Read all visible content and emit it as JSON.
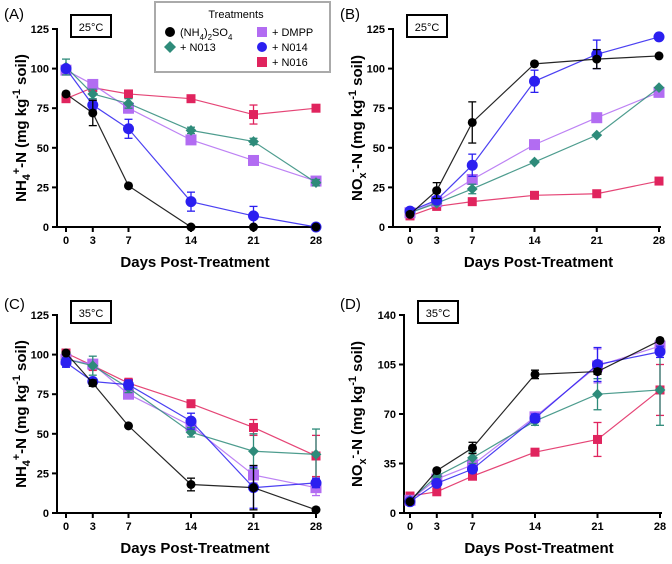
{
  "legend": {
    "title": "Treatments",
    "entries": [
      {
        "key": "AS",
        "label": [
          {
            "t": "(NH"
          },
          {
            "t": "4",
            "s": "sub"
          },
          {
            "t": ")"
          },
          {
            "t": "2",
            "s": "sub"
          },
          {
            "t": "SO"
          },
          {
            "t": "4",
            "s": "sub"
          }
        ]
      },
      {
        "key": "N013",
        "label": [
          {
            "t": "+ N013"
          }
        ]
      },
      {
        "key": "DMPP",
        "label": [
          {
            "t": "+ DMPP"
          }
        ]
      },
      {
        "key": "N014",
        "label": [
          {
            "t": "+ N014"
          }
        ]
      },
      {
        "key": "N016",
        "label": [
          {
            "t": "+ N016"
          }
        ]
      }
    ]
  },
  "styles": {
    "AS": {
      "color": "#000000",
      "marker": "circle"
    },
    "DMPP": {
      "color": "#b26cf2",
      "marker": "square"
    },
    "N013": {
      "color": "#2e8b7a",
      "marker": "diamond"
    },
    "N014": {
      "color": "#2b1ff0",
      "marker": "circle"
    },
    "N016": {
      "color": "#e0245e",
      "marker": "square"
    }
  },
  "chart_data": [
    {
      "type": "line",
      "panel": "(A)",
      "temperature": "25°C",
      "xlabel": "Days Post-Treatment",
      "ylabel": [
        {
          "t": "NH"
        },
        {
          "t": "4",
          "s": "sub"
        },
        {
          "t": "+",
          "s": "sup"
        },
        {
          "t": "-N (mg kg"
        },
        {
          "t": "-1",
          "s": "sup"
        },
        {
          "t": " soil)"
        }
      ],
      "x": [
        0,
        3,
        7,
        14,
        21,
        28
      ],
      "ylim": [
        0,
        125
      ],
      "yticks": [
        0,
        25,
        50,
        75,
        100,
        125
      ],
      "series": [
        {
          "key": "N016",
          "values": [
            81,
            88,
            84,
            81,
            71,
            75
          ],
          "err": [
            2,
            2,
            2,
            2,
            6,
            1
          ]
        },
        {
          "key": "DMPP",
          "values": [
            99,
            90,
            75,
            55,
            42,
            29
          ],
          "err": [
            2,
            2,
            3,
            2,
            2,
            2
          ]
        },
        {
          "key": "N013",
          "values": [
            101,
            84,
            78,
            61,
            54,
            28
          ],
          "err": [
            5,
            3,
            3,
            2,
            2,
            2
          ]
        },
        {
          "key": "N014",
          "values": [
            100,
            77,
            62,
            16,
            7,
            0
          ],
          "err": [
            2,
            3,
            6,
            6,
            6,
            1
          ]
        },
        {
          "key": "AS",
          "values": [
            84,
            72,
            26,
            0,
            0,
            0
          ],
          "err": [
            1,
            8,
            1,
            0,
            0,
            0
          ]
        }
      ]
    },
    {
      "type": "line",
      "panel": "(B)",
      "temperature": "25°C",
      "xlabel": "Days Post-Treatment",
      "ylabel": [
        {
          "t": "NO"
        },
        {
          "t": "x",
          "s": "sub"
        },
        {
          "t": "-",
          "s": "sup"
        },
        {
          "t": "-N (mg kg"
        },
        {
          "t": "-1",
          "s": "sup"
        },
        {
          "t": " soil)"
        }
      ],
      "x": [
        0,
        3,
        7,
        14,
        21,
        28
      ],
      "ylim": [
        0,
        125
      ],
      "yticks": [
        0,
        25,
        50,
        75,
        100,
        125
      ],
      "series": [
        {
          "key": "N016",
          "values": [
            7,
            13,
            16,
            20,
            21,
            29
          ],
          "err": [
            1,
            1,
            1,
            1,
            1,
            1
          ]
        },
        {
          "key": "DMPP",
          "values": [
            9,
            16,
            30,
            52,
            69,
            85
          ],
          "err": [
            1,
            2,
            3,
            2,
            2,
            2
          ]
        },
        {
          "key": "N013",
          "values": [
            9,
            15,
            24,
            41,
            58,
            88
          ],
          "err": [
            1,
            1,
            3,
            1,
            1,
            1
          ]
        },
        {
          "key": "N014",
          "values": [
            10,
            17,
            39,
            92,
            109,
            120
          ],
          "err": [
            1,
            2,
            7,
            7,
            9,
            1
          ]
        },
        {
          "key": "AS",
          "values": [
            8,
            23,
            66,
            103,
            106,
            108
          ],
          "err": [
            1,
            5,
            13,
            1,
            6,
            1
          ]
        }
      ]
    },
    {
      "type": "line",
      "panel": "(C)",
      "temperature": "35°C",
      "xlabel": "Days Post-Treatment",
      "ylabel": [
        {
          "t": "NH"
        },
        {
          "t": "4",
          "s": "sub"
        },
        {
          "t": "+",
          "s": "sup"
        },
        {
          "t": "-N (mg kg"
        },
        {
          "t": "-1",
          "s": "sup"
        },
        {
          "t": " soil)"
        }
      ],
      "x": [
        0,
        3,
        7,
        14,
        21,
        28
      ],
      "ylim": [
        0,
        125
      ],
      "yticks": [
        0,
        25,
        50,
        75,
        100,
        125
      ],
      "series": [
        {
          "key": "N016",
          "values": [
            101,
            93,
            82,
            69,
            54,
            36
          ],
          "err": [
            1,
            3,
            3,
            1,
            5,
            13
          ]
        },
        {
          "key": "DMPP",
          "values": [
            97,
            94,
            75,
            55,
            24,
            16
          ],
          "err": [
            2,
            2,
            2,
            3,
            5,
            5
          ]
        },
        {
          "key": "N013",
          "values": [
            97,
            93,
            79,
            51,
            39,
            37
          ],
          "err": [
            3,
            6,
            3,
            3,
            11,
            16
          ]
        },
        {
          "key": "N014",
          "values": [
            95,
            83,
            81,
            58,
            16,
            19
          ],
          "err": [
            3,
            2,
            3,
            5,
            13,
            3
          ]
        },
        {
          "key": "AS",
          "values": [
            101,
            82,
            55,
            18,
            16,
            2
          ],
          "err": [
            1,
            2,
            1,
            4,
            14,
            1
          ]
        }
      ]
    },
    {
      "type": "line",
      "panel": "(D)",
      "temperature": "35°C",
      "xlabel": "Days Post-Treatment",
      "ylabel": [
        {
          "t": "NO"
        },
        {
          "t": "x",
          "s": "sub"
        },
        {
          "t": "-",
          "s": "sup"
        },
        {
          "t": "-N (mg kg"
        },
        {
          "t": "-1",
          "s": "sup"
        },
        {
          "t": " soil)"
        }
      ],
      "x": [
        0,
        3,
        7,
        14,
        21,
        28
      ],
      "ylim": [
        0,
        140
      ],
      "yticks": [
        0,
        35,
        70,
        105,
        140
      ],
      "series": [
        {
          "key": "N016",
          "values": [
            12,
            15,
            26,
            43,
            52,
            87
          ],
          "err": [
            1,
            1,
            1,
            1,
            12,
            18
          ]
        },
        {
          "key": "DMPP",
          "values": [
            9,
            24,
            34,
            68,
            104,
            118
          ],
          "err": [
            1,
            2,
            3,
            3,
            12,
            4
          ]
        },
        {
          "key": "N013",
          "values": [
            9,
            26,
            39,
            65,
            84,
            87
          ],
          "err": [
            1,
            2,
            4,
            3,
            11,
            25
          ]
        },
        {
          "key": "N014",
          "values": [
            8,
            21,
            31,
            67,
            105,
            114
          ],
          "err": [
            1,
            2,
            2,
            3,
            12,
            4
          ]
        },
        {
          "key": "AS",
          "values": [
            8,
            30,
            46,
            98,
            100,
            122
          ],
          "err": [
            1,
            1,
            4,
            3,
            2,
            1
          ]
        }
      ]
    }
  ]
}
